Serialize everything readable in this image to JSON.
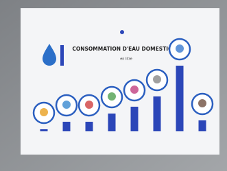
{
  "chart_data": {
    "type": "bar",
    "title": "CONSOMMATION D'EAU DOMESTIQUE",
    "subtitle": "en litre",
    "categories": [
      null,
      null,
      null,
      null,
      null,
      null,
      null,
      null
    ],
    "values": [
      3,
      14,
      14,
      26,
      36,
      51,
      96,
      16
    ],
    "color": "#2b46b8"
  }
}
